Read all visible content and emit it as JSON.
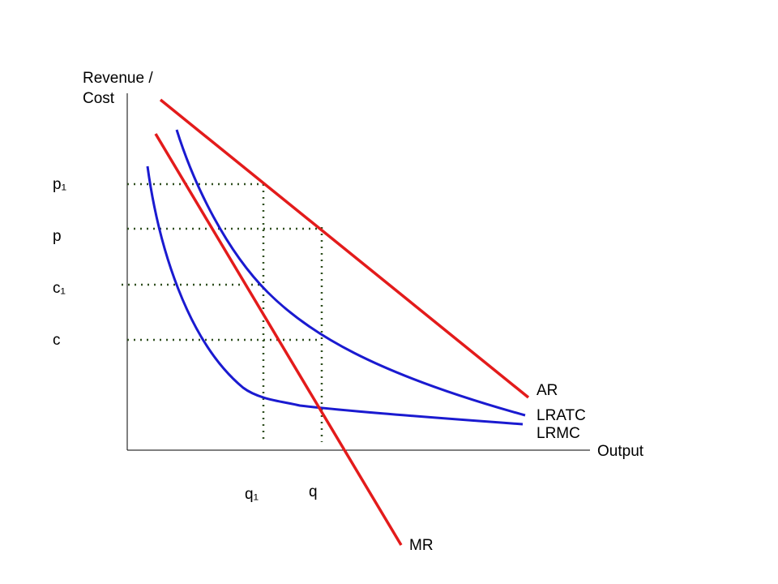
{
  "axes": {
    "y_label": [
      "Revenue /",
      "Cost"
    ],
    "x_label": "Output"
  },
  "price_labels": [
    "p₁",
    "p",
    "c₁",
    "c"
  ],
  "quantity_labels": [
    "q₁",
    "q"
  ],
  "curve_labels": {
    "ar": "AR",
    "mr": "MR",
    "lratc": "LRATC",
    "lrmc": "LRMC"
  }
}
